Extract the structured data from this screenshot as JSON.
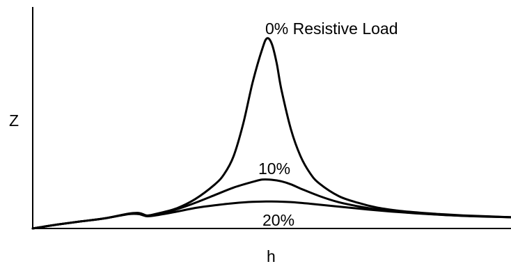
{
  "chart_data": {
    "type": "line",
    "title": "",
    "xlabel": "h",
    "ylabel": "Z",
    "grid": false,
    "legend": "none",
    "colors": {
      "line": "#000000",
      "axis": "#000000",
      "background": "#ffffff"
    },
    "xlim": [
      0,
      100
    ],
    "ylim": [
      0,
      100
    ],
    "series": [
      {
        "name": "0% Resistive Load",
        "x": [
          0,
          5,
          10,
          15,
          20,
          22,
          23,
          24,
          26,
          30,
          34,
          38,
          40,
          42,
          44,
          46,
          48,
          49,
          50,
          51,
          52,
          54,
          56,
          58,
          60,
          64,
          68,
          72,
          76,
          80,
          85,
          90,
          95,
          100
        ],
        "y": [
          0,
          2.0,
          3.7,
          5.3,
          7.8,
          8.2,
          7.6,
          6.8,
          7.8,
          10.5,
          15.5,
          23.0,
          28.5,
          38.0,
          55.0,
          77.0,
          94.5,
          100.0,
          97.0,
          87.0,
          73.0,
          52.0,
          38.0,
          29.0,
          23.5,
          17.0,
          13.5,
          11.0,
          9.5,
          8.5,
          7.6,
          6.9,
          6.4,
          5.9
        ]
      },
      {
        "name": "10%",
        "x": [
          0,
          5,
          10,
          15,
          20,
          22,
          23,
          24,
          26,
          30,
          34,
          38,
          42,
          46,
          48,
          50,
          52,
          54,
          56,
          60,
          64,
          68,
          72,
          76,
          80,
          85,
          90,
          95,
          100
        ],
        "y": [
          0,
          2.0,
          3.7,
          5.3,
          7.7,
          7.9,
          7.3,
          6.6,
          7.4,
          10.0,
          13.5,
          17.5,
          21.5,
          24.5,
          25.7,
          25.6,
          24.8,
          23.2,
          21.0,
          17.0,
          13.8,
          11.7,
          10.0,
          8.9,
          8.1,
          7.3,
          6.7,
          6.3,
          5.9
        ]
      },
      {
        "name": "20%",
        "x": [
          0,
          5,
          10,
          15,
          20,
          22,
          23,
          24,
          26,
          30,
          34,
          38,
          42,
          46,
          50,
          54,
          58,
          62,
          66,
          70,
          75,
          80,
          85,
          90,
          95,
          100
        ],
        "y": [
          0,
          2.0,
          3.7,
          5.3,
          7.5,
          7.6,
          7.0,
          6.4,
          7.0,
          8.8,
          10.8,
          12.2,
          13.3,
          14.0,
          14.2,
          13.9,
          13.0,
          12.0,
          11.0,
          10.0,
          8.9,
          8.0,
          7.2,
          6.6,
          6.2,
          5.9
        ]
      }
    ],
    "annotations": [
      "0% Resistive Load",
      "10%",
      "20%"
    ]
  }
}
